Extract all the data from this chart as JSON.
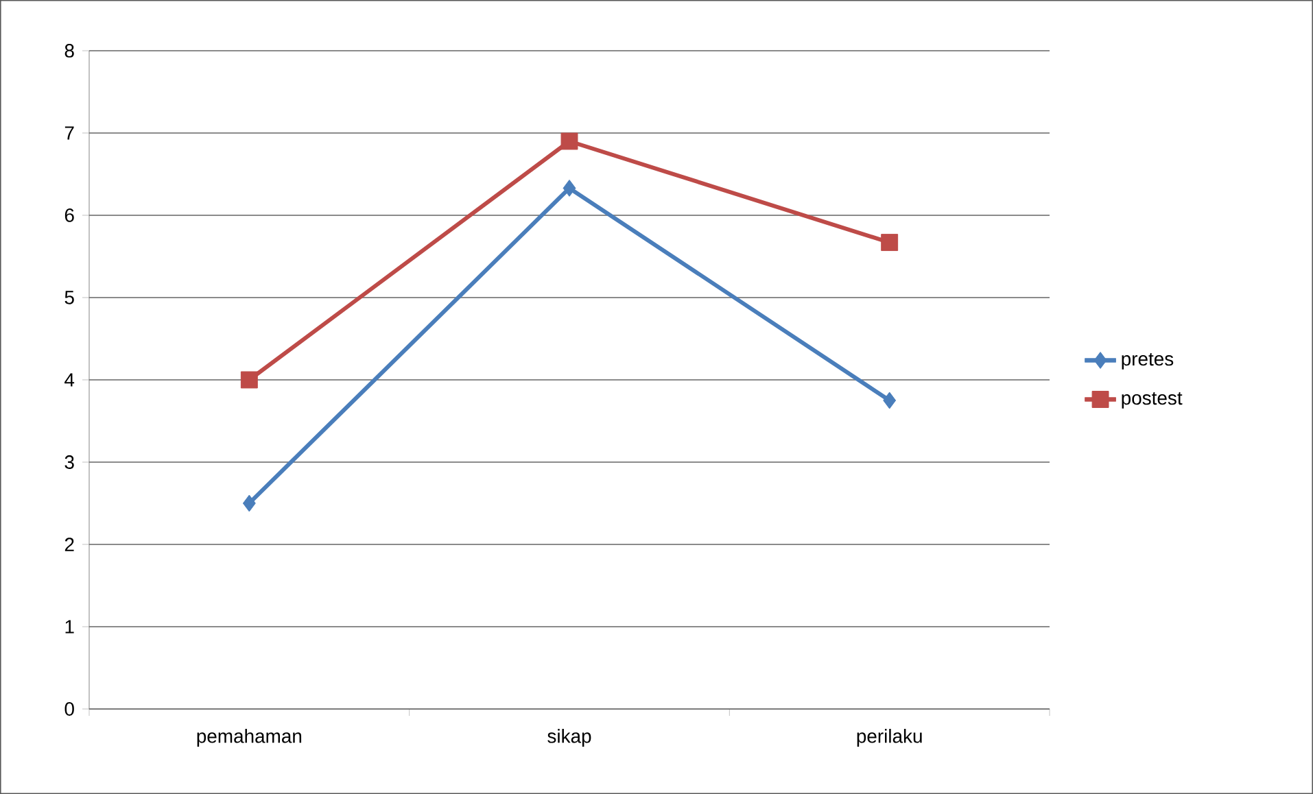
{
  "chart_data": {
    "type": "line",
    "categories": [
      "pemahaman",
      "sikap",
      "perilaku"
    ],
    "series": [
      {
        "name": "pretes",
        "color": "#4a7ebb",
        "marker": "diamond",
        "values": [
          2.5,
          6.33,
          3.75
        ]
      },
      {
        "name": "postest",
        "color": "#be4b48",
        "marker": "square",
        "values": [
          4.0,
          6.9,
          5.67
        ]
      }
    ],
    "ylim": [
      0,
      8
    ],
    "yticks": [
      0,
      1,
      2,
      3,
      4,
      5,
      6,
      7,
      8
    ],
    "grid": "y",
    "legend": "right"
  }
}
